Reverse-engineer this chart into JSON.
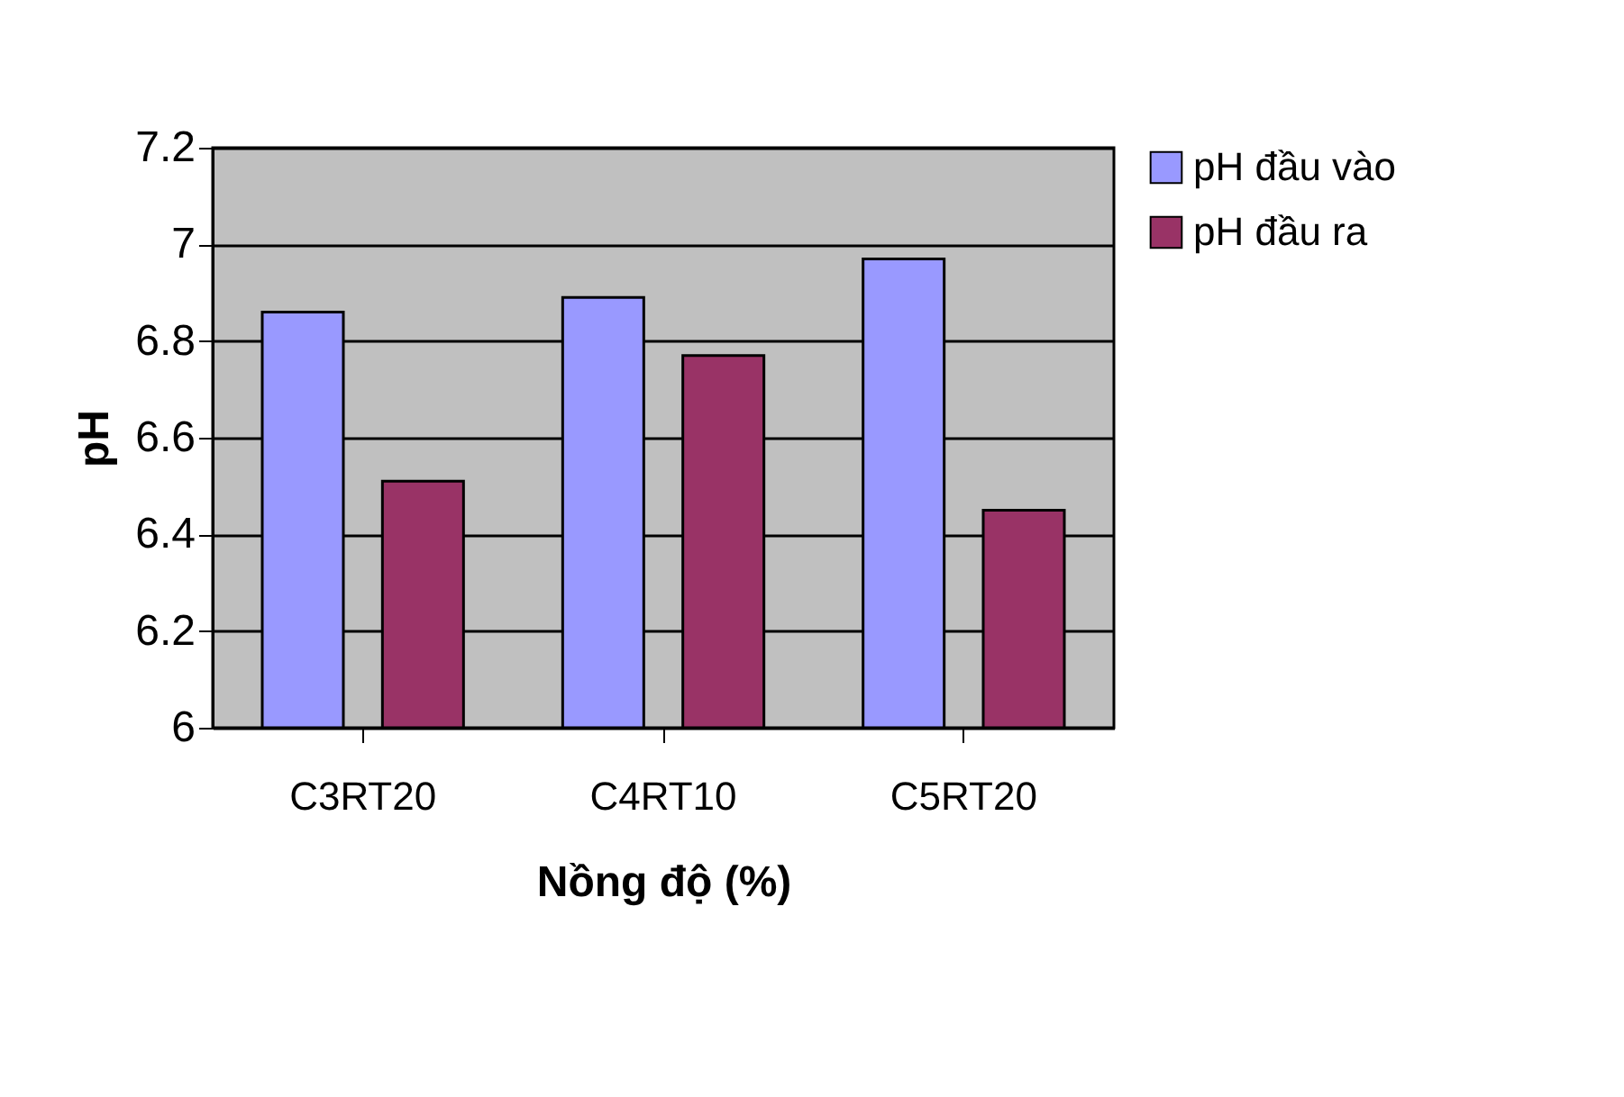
{
  "chart_data": {
    "type": "bar",
    "xlabel": "Nồng độ (%)",
    "ylabel": "pH",
    "categories": [
      "C3RT20",
      "C4RT10",
      "C5RT20"
    ],
    "series": [
      {
        "name": "pH đầu vào",
        "color": "#9999ff",
        "values": [
          6.86,
          6.89,
          6.97
        ]
      },
      {
        "name": "pH đầu ra",
        "color": "#993366",
        "values": [
          6.51,
          6.77,
          6.45
        ]
      }
    ],
    "ylim": [
      6,
      7.2
    ],
    "yticks": [
      6,
      6.2,
      6.4,
      6.6,
      6.8,
      7,
      7.2
    ],
    "grid": "y",
    "legend": "right"
  }
}
